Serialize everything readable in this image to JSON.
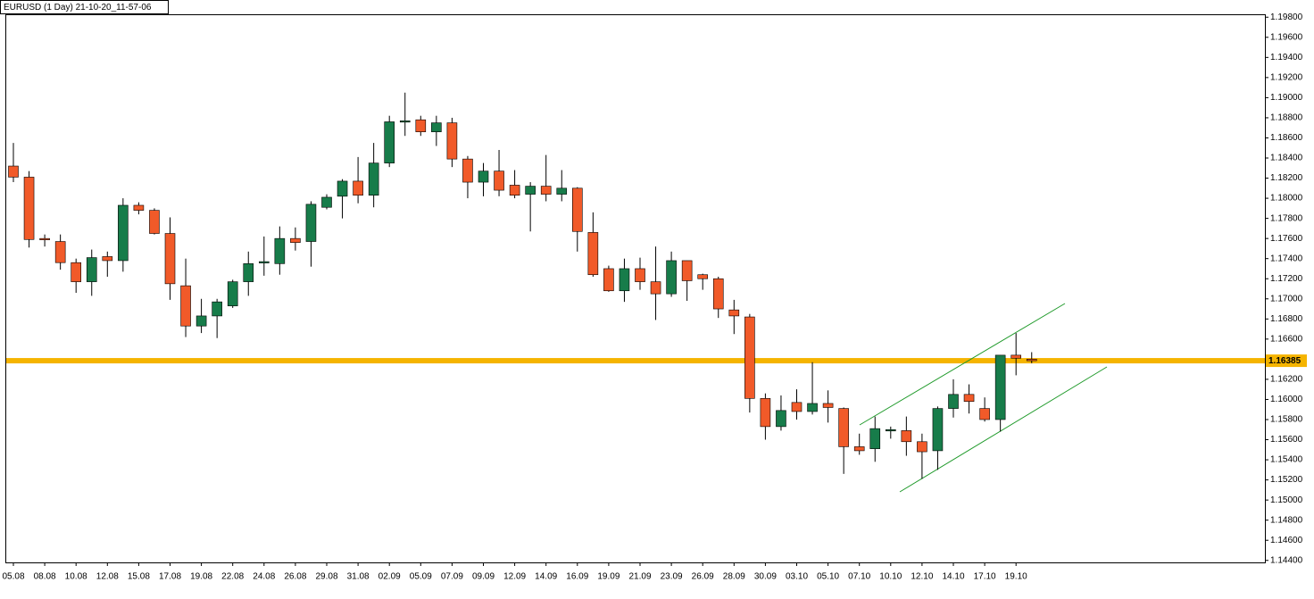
{
  "chart_data": {
    "type": "candlestick",
    "title": "EURUSD (1 Day) 21-10-20_11-57-06",
    "x": [
      "05.08",
      null,
      "08.08",
      null,
      "10.08",
      null,
      "12.08",
      null,
      "15.08",
      null,
      "17.08",
      null,
      "19.08",
      null,
      "22.08",
      null,
      "24.08",
      null,
      "26.08",
      null,
      "29.08",
      null,
      "31.08",
      null,
      "02.09",
      null,
      "05.09",
      null,
      "07.09",
      null,
      "09.09",
      null,
      "12.09",
      null,
      "14.09",
      null,
      "16.09",
      null,
      "19.09",
      null,
      "21.09",
      null,
      "23.09",
      null,
      "26.09",
      null,
      "28.09",
      null,
      "30.09",
      null,
      "03.10",
      null,
      "05.10",
      null,
      "07.10",
      null,
      "10.10",
      null,
      "12.10",
      null,
      "14.10",
      null,
      "17.10",
      null,
      "19.10",
      null
    ],
    "open": [
      1.1832,
      1.1821,
      1.176,
      1.1757,
      1.1736,
      1.1717,
      1.1742,
      1.1738,
      1.1793,
      1.1788,
      1.1765,
      1.1713,
      1.1673,
      1.1683,
      1.1693,
      1.1717,
      1.1736,
      1.1735,
      1.176,
      1.1757,
      1.1791,
      1.1802,
      1.1817,
      1.1803,
      1.1835,
      1.1876,
      1.1878,
      1.1866,
      1.1875,
      1.1839,
      1.1816,
      1.1827,
      1.1813,
      1.1804,
      1.1812,
      1.1804,
      1.181,
      1.1766,
      1.173,
      1.1708,
      1.173,
      1.1717,
      1.1705,
      1.1738,
      1.1724,
      1.172,
      1.1689,
      1.1682,
      1.1601,
      1.1573,
      1.1597,
      1.1588,
      1.1596,
      1.1591,
      1.1553,
      1.1551,
      1.1569,
      1.1569,
      1.1558,
      1.1549,
      1.1591,
      1.1605,
      1.1591,
      1.158,
      1.1644,
      1.164
    ],
    "high": [
      1.1855,
      1.1827,
      1.1764,
      1.1764,
      1.174,
      1.1749,
      1.1747,
      1.18,
      1.1796,
      1.179,
      1.1781,
      1.174,
      1.17,
      1.17,
      1.1719,
      1.1747,
      1.1762,
      1.1772,
      1.1771,
      1.1797,
      1.1804,
      1.1819,
      1.1841,
      1.1855,
      1.1882,
      1.1905,
      1.1882,
      1.1882,
      1.188,
      1.1842,
      1.1835,
      1.1848,
      1.1828,
      1.1816,
      1.1843,
      1.1828,
      1.1811,
      1.1786,
      1.1733,
      1.174,
      1.1741,
      1.1752,
      1.1747,
      1.1738,
      1.1725,
      1.1722,
      1.1699,
      1.1685,
      1.1606,
      1.1604,
      1.161,
      1.1637,
      1.1609,
      1.1592,
      1.1566,
      1.1583,
      1.1573,
      1.1583,
      1.1566,
      1.1593,
      1.162,
      1.1615,
      1.1602,
      1.1644,
      1.1666,
      1.1647
    ],
    "low": [
      1.1816,
      1.1751,
      1.1752,
      1.1729,
      1.1706,
      1.1703,
      1.1722,
      1.1727,
      1.1784,
      1.1764,
      1.1699,
      1.1662,
      1.1666,
      1.1661,
      1.1691,
      1.1703,
      1.1723,
      1.1724,
      1.1748,
      1.1732,
      1.1789,
      1.178,
      1.1795,
      1.1791,
      1.1831,
      1.1862,
      1.1862,
      1.1852,
      1.1831,
      1.18,
      1.1802,
      1.1802,
      1.18,
      1.1767,
      1.1797,
      1.1797,
      1.1747,
      1.1722,
      1.1707,
      1.1697,
      1.1709,
      1.1679,
      1.1702,
      1.1698,
      1.1709,
      1.1681,
      1.1665,
      1.1587,
      1.156,
      1.1569,
      1.158,
      1.1585,
      1.1577,
      1.1526,
      1.1545,
      1.1538,
      1.1561,
      1.1544,
      1.1521,
      1.153,
      1.1582,
      1.1586,
      1.1578,
      1.1568,
      1.1624,
      1.1636
    ],
    "close": [
      1.1821,
      1.1759,
      1.1759,
      1.1736,
      1.1717,
      1.1741,
      1.1738,
      1.1793,
      1.1788,
      1.1765,
      1.1715,
      1.1673,
      1.1683,
      1.1697,
      1.1717,
      1.1735,
      1.1737,
      1.176,
      1.1756,
      1.1794,
      1.1801,
      1.1817,
      1.1803,
      1.1835,
      1.1876,
      1.1877,
      1.1866,
      1.1875,
      1.1839,
      1.1816,
      1.1827,
      1.1808,
      1.1803,
      1.1812,
      1.1804,
      1.181,
      1.1767,
      1.1724,
      1.1708,
      1.173,
      1.1717,
      1.1705,
      1.1738,
      1.1718,
      1.172,
      1.169,
      1.1683,
      1.1601,
      1.1573,
      1.1589,
      1.1588,
      1.1596,
      1.1592,
      1.1553,
      1.1549,
      1.1571,
      1.157,
      1.1558,
      1.1548,
      1.1591,
      1.1605,
      1.1598,
      1.158,
      1.1644,
      1.1641,
      1.16385
    ],
    "up_color": "#177c4a",
    "down_color": "#f15a29",
    "ylim": [
      1.1438,
      1.1982
    ],
    "yticks": [
      {
        "value": 1.198,
        "label": "1.19800"
      },
      {
        "value": 1.196,
        "label": "1.19600"
      },
      {
        "value": 1.194,
        "label": "1.19400"
      },
      {
        "value": 1.192,
        "label": "1.19200"
      },
      {
        "value": 1.19,
        "label": "1.19000"
      },
      {
        "value": 1.188,
        "label": "1.18800"
      },
      {
        "value": 1.186,
        "label": "1.18600"
      },
      {
        "value": 1.184,
        "label": "1.18400"
      },
      {
        "value": 1.182,
        "label": "1.18200"
      },
      {
        "value": 1.18,
        "label": "1.18000"
      },
      {
        "value": 1.178,
        "label": "1.17800"
      },
      {
        "value": 1.176,
        "label": "1.17600"
      },
      {
        "value": 1.174,
        "label": "1.17400"
      },
      {
        "value": 1.172,
        "label": "1.17200"
      },
      {
        "value": 1.17,
        "label": "1.17000"
      },
      {
        "value": 1.168,
        "label": "1.16800"
      },
      {
        "value": 1.166,
        "label": "1.16600"
      },
      {
        "value": 1.164,
        "label": "1.16400"
      },
      {
        "value": 1.162,
        "label": "1.16200"
      },
      {
        "value": 1.16,
        "label": "1.16000"
      },
      {
        "value": 1.158,
        "label": "1.15800"
      },
      {
        "value": 1.156,
        "label": "1.15600"
      },
      {
        "value": 1.154,
        "label": "1.15400"
      },
      {
        "value": 1.152,
        "label": "1.15200"
      },
      {
        "value": 1.15,
        "label": "1.15000"
      },
      {
        "value": 1.148,
        "label": "1.14800"
      },
      {
        "value": 1.146,
        "label": "1.14600"
      },
      {
        "value": 1.144,
        "label": "1.14400"
      }
    ],
    "price_line": {
      "value": 1.16385,
      "color": "#f5b400"
    }
  }
}
